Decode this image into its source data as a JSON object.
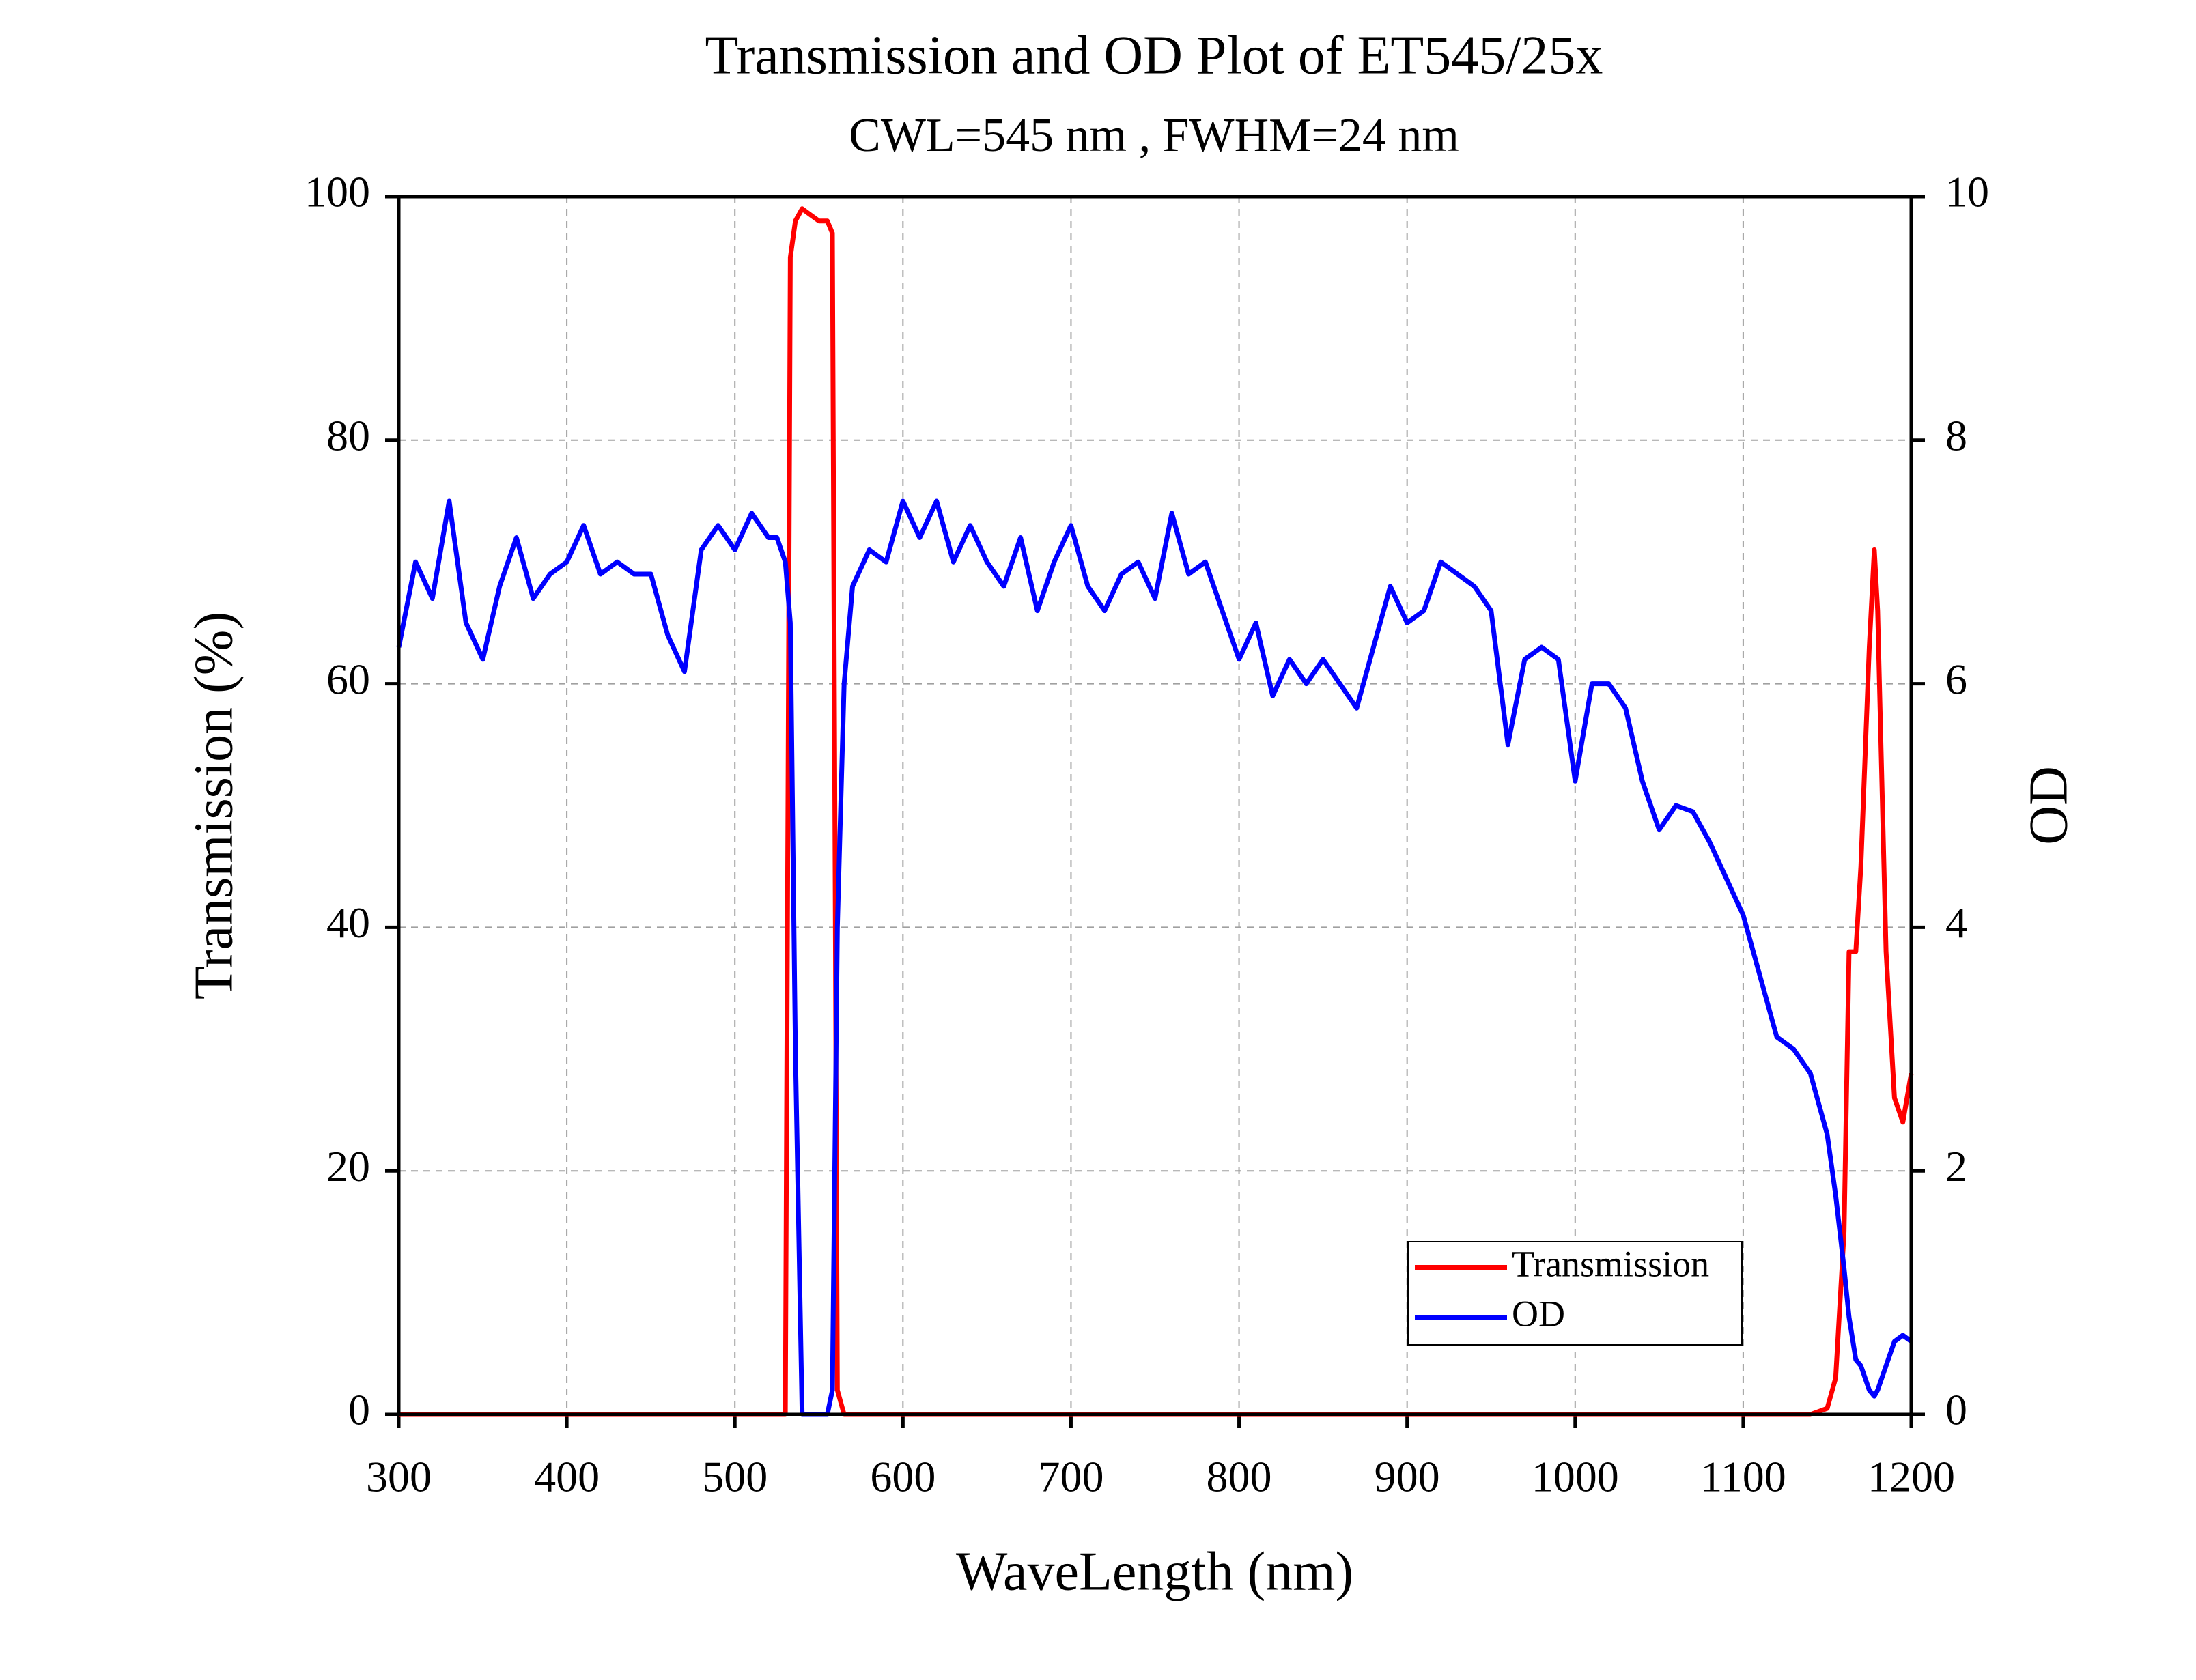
{
  "chart_data": {
    "type": "line",
    "title": "Transmission and OD Plot of ET545/25x",
    "subtitle": "CWL=545 nm , FWHM=24 nm",
    "x_label": "WaveLength (nm)",
    "y_label": "Transmission (%)",
    "y2_label": "OD",
    "x": [
      300,
      310,
      320,
      330,
      340,
      350,
      360,
      370,
      380,
      390,
      400,
      410,
      420,
      430,
      440,
      450,
      460,
      470,
      480,
      490,
      500,
      510,
      520,
      525,
      530,
      533,
      536,
      540,
      545,
      550,
      555,
      558,
      561,
      565,
      570,
      580,
      590,
      600,
      610,
      620,
      630,
      640,
      650,
      660,
      670,
      680,
      690,
      700,
      710,
      720,
      730,
      740,
      750,
      760,
      770,
      780,
      790,
      800,
      810,
      820,
      830,
      840,
      850,
      860,
      870,
      880,
      890,
      900,
      910,
      920,
      930,
      940,
      950,
      960,
      970,
      980,
      990,
      1000,
      1010,
      1020,
      1030,
      1040,
      1050,
      1060,
      1070,
      1080,
      1090,
      1100,
      1110,
      1120,
      1130,
      1140,
      1150,
      1155,
      1160,
      1163,
      1167,
      1170,
      1175,
      1178,
      1180,
      1185,
      1190,
      1195,
      1200
    ],
    "series": [
      {
        "name": "Transmission",
        "color": "#ff0000",
        "axis": "y",
        "values": [
          0,
          0,
          0,
          0,
          0,
          0,
          0,
          0,
          0,
          0,
          0,
          0,
          0,
          0,
          0,
          0,
          0,
          0,
          0,
          0,
          0,
          0,
          0,
          0,
          0,
          95,
          98,
          99,
          98.5,
          98,
          98,
          97,
          2,
          0,
          0,
          0,
          0,
          0,
          0,
          0,
          0,
          0,
          0,
          0,
          0,
          0,
          0,
          0,
          0,
          0,
          0,
          0,
          0,
          0,
          0,
          0,
          0,
          0,
          0,
          0,
          0,
          0,
          0,
          0,
          0,
          0,
          0,
          0,
          0,
          0,
          0,
          0,
          0,
          0,
          0,
          0,
          0,
          0,
          0,
          0,
          0,
          0,
          0,
          0,
          0,
          0,
          0,
          0,
          0,
          0,
          0,
          0,
          0.5,
          3,
          15,
          38,
          38,
          45,
          63,
          71,
          66,
          38,
          26,
          24,
          28
        ]
      },
      {
        "name": "OD",
        "color": "#0000ff",
        "axis": "y2",
        "values": [
          6.3,
          7.0,
          6.7,
          7.5,
          6.5,
          6.2,
          6.8,
          7.2,
          6.7,
          6.9,
          7.0,
          7.3,
          6.9,
          7.0,
          6.9,
          6.9,
          6.4,
          6.1,
          7.1,
          7.3,
          7.1,
          7.4,
          7.2,
          7.2,
          7.0,
          6.5,
          3.0,
          0,
          0,
          0,
          0,
          0.2,
          4.0,
          6.0,
          6.8,
          7.1,
          7.0,
          7.5,
          7.2,
          7.5,
          7.0,
          7.3,
          7.0,
          6.8,
          7.2,
          6.6,
          7.0,
          7.3,
          6.8,
          6.6,
          6.9,
          7.0,
          6.7,
          7.4,
          6.9,
          7.0,
          6.6,
          6.2,
          6.5,
          5.9,
          6.2,
          6.0,
          6.2,
          6.0,
          5.8,
          6.3,
          6.8,
          6.5,
          6.6,
          7.0,
          6.9,
          6.8,
          6.6,
          5.5,
          6.2,
          6.3,
          6.2,
          5.2,
          6.0,
          6.0,
          5.8,
          5.2,
          4.8,
          5.0,
          4.95,
          4.7,
          4.4,
          4.1,
          3.6,
          3.1,
          3.0,
          2.8,
          2.3,
          1.8,
          1.2,
          0.8,
          0.45,
          0.4,
          0.2,
          0.15,
          0.2,
          0.4,
          0.6,
          0.65,
          0.6
        ]
      }
    ],
    "xlim": [
      300,
      1200
    ],
    "xticks": [
      300,
      400,
      500,
      600,
      700,
      800,
      900,
      1000,
      1100,
      1200
    ],
    "ylim": [
      0,
      100
    ],
    "yticks": [
      0,
      20,
      40,
      60,
      80,
      100
    ],
    "y2lim": [
      0,
      10
    ],
    "y2ticks": [
      0,
      2,
      4,
      6,
      8,
      10
    ],
    "grid": true,
    "legend": "lower right"
  }
}
